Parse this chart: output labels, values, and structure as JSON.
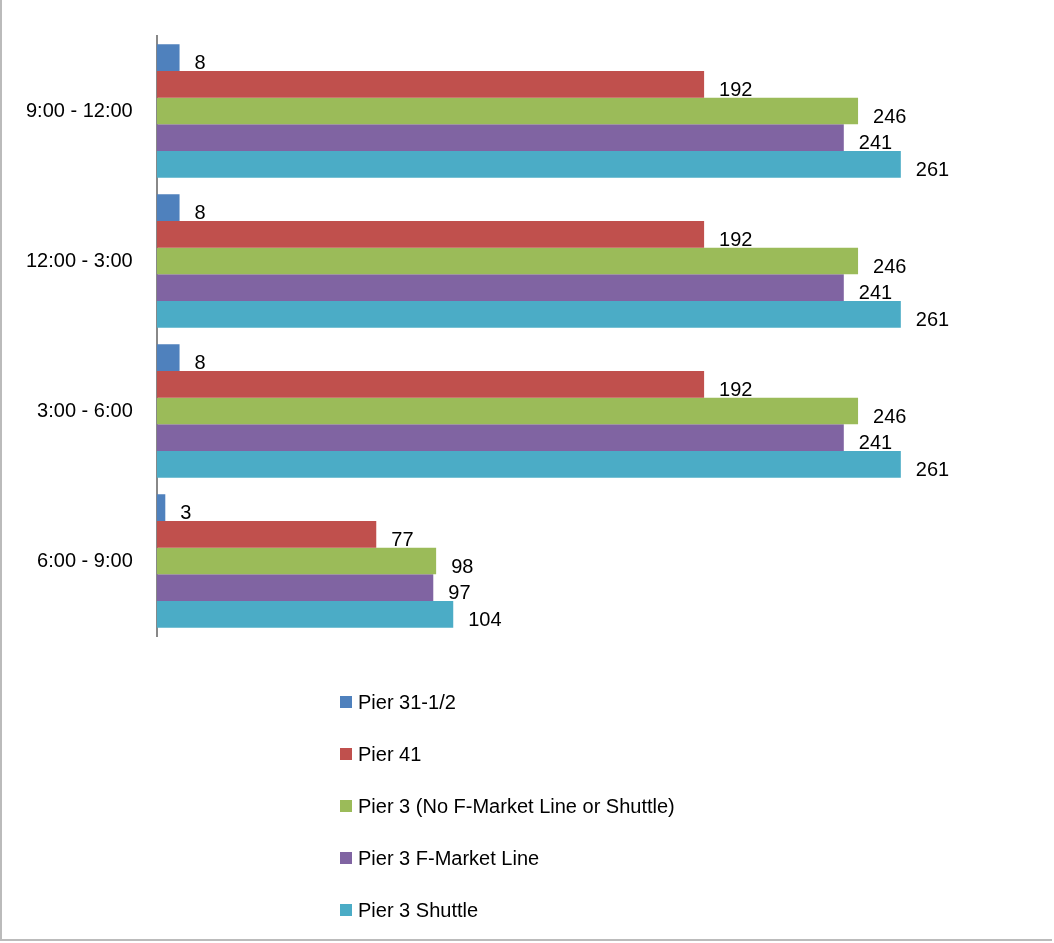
{
  "chart_data": {
    "type": "bar",
    "orientation": "horizontal",
    "categories": [
      "9:00 - 12:00",
      "12:00 - 3:00",
      "3:00 - 6:00",
      "6:00 - 9:00"
    ],
    "series": [
      {
        "name": "Pier 31-1/2",
        "color": "#4f81bd",
        "values": [
          8,
          8,
          8,
          3
        ]
      },
      {
        "name": "Pier 41",
        "color": "#c0504d",
        "values": [
          192,
          192,
          192,
          77
        ]
      },
      {
        "name": "Pier 3 (No F-Market Line or Shuttle)",
        "color": "#9bbb59",
        "values": [
          246,
          246,
          246,
          98
        ]
      },
      {
        "name": "Pier 3 F-Market Line",
        "color": "#8064a2",
        "values": [
          241,
          241,
          241,
          97
        ]
      },
      {
        "name": "Pier 3 Shuttle",
        "color": "#4bacc6",
        "values": [
          261,
          261,
          261,
          104
        ]
      }
    ],
    "tick_labels": "y",
    "grid": false,
    "legend": "bottom",
    "data_labels": true
  }
}
